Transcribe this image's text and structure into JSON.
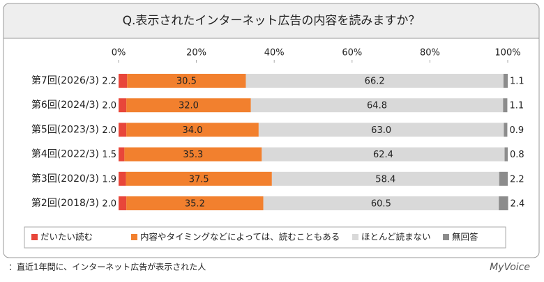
{
  "chart_data": {
    "type": "stacked-barh",
    "title": "Q.表示されたインターネット広告の内容を読みますか？",
    "categories": [
      "第7回(2026/3)",
      "第6回(2024/3)",
      "第5回(2023/3)",
      "第4回(2022/3)",
      "第3回(2020/3)",
      "第2回(2018/3)"
    ],
    "series": [
      {
        "name": "だいたい読む",
        "color": "#e8463a",
        "values": [
          2.2,
          2.0,
          2.0,
          1.5,
          1.9,
          2.0
        ],
        "value_labels": [
          "2.2",
          "2.0",
          "2.0",
          "1.5",
          "1.9",
          "2.0"
        ]
      },
      {
        "name": "内容やタイミングなどによっては、読むこともある",
        "color": "#f2802e",
        "values": [
          30.5,
          32.0,
          34.0,
          35.3,
          37.5,
          35.2
        ],
        "value_labels": [
          "30.5",
          "32.0",
          "34.0",
          "35.3",
          "37.5",
          "35.2"
        ]
      },
      {
        "name": "ほとんど読まない",
        "color": "#d9d9d9",
        "values": [
          66.2,
          64.8,
          63.0,
          62.4,
          58.4,
          60.5
        ],
        "value_labels": [
          "66.2",
          "64.8",
          "63.0",
          "62.4",
          "58.4",
          "60.5"
        ]
      },
      {
        "name": "無回答",
        "color": "#8c8c8c",
        "values": [
          1.1,
          1.1,
          0.9,
          0.8,
          2.2,
          2.4
        ],
        "value_labels": [
          "1.1",
          "1.1",
          "0.9",
          "0.8",
          "2.2",
          "2.4"
        ]
      }
    ],
    "xlim": [
      0,
      100
    ],
    "xticks": [
      {
        "value": 0,
        "label": "0%"
      },
      {
        "value": 20,
        "label": "20%"
      },
      {
        "value": 40,
        "label": "40%"
      },
      {
        "value": 60,
        "label": "60%"
      },
      {
        "value": 80,
        "label": "80%"
      },
      {
        "value": 100,
        "label": "100%"
      }
    ],
    "footnote": "：直近1年間に、インターネット広告が表示された人",
    "brand": "MyVoice"
  }
}
